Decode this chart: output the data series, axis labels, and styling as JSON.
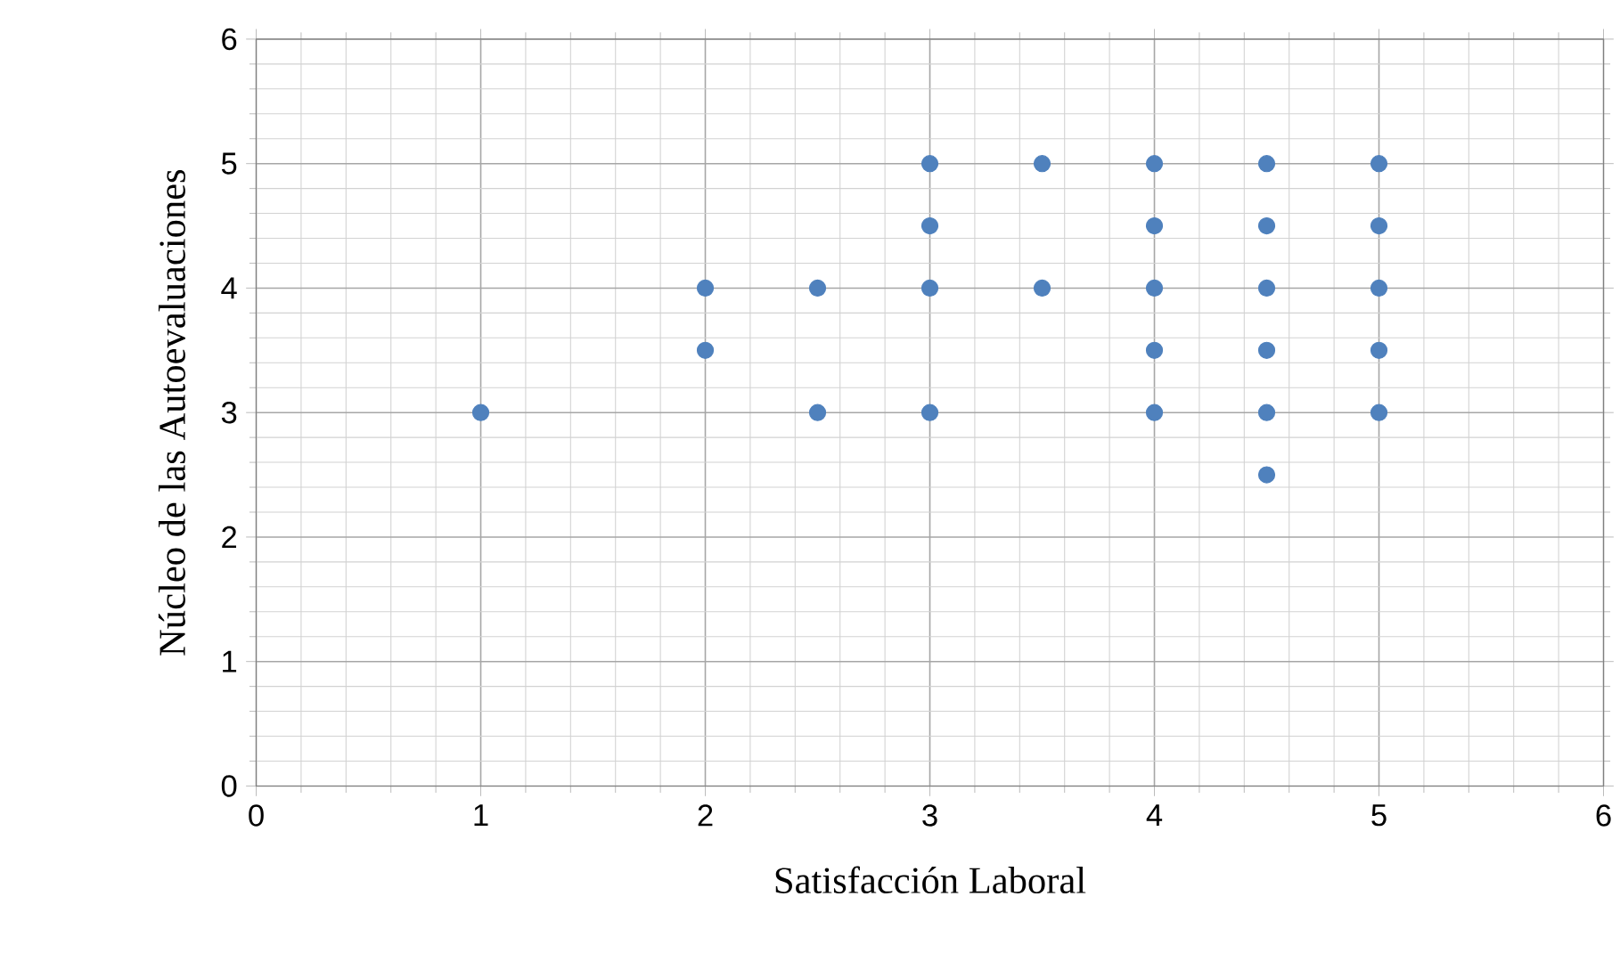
{
  "chart_data": {
    "type": "scatter",
    "xlabel": "Satisfacción Laboral",
    "ylabel": "Núcleo de las Autoevaluaciones",
    "x": [
      1,
      2,
      2,
      2.5,
      2.5,
      3,
      3,
      3,
      3,
      3.5,
      3.5,
      4,
      4,
      4,
      4,
      4,
      4.5,
      4.5,
      4.5,
      4.5,
      4.5,
      4.5,
      5,
      5,
      5,
      5,
      5
    ],
    "values": [
      3,
      4,
      3.5,
      4,
      3,
      5,
      4.5,
      4,
      3,
      5,
      4,
      5,
      4.5,
      4,
      3.5,
      3,
      5,
      4.5,
      4,
      3.5,
      3,
      2.5,
      5,
      4.5,
      4,
      3.5,
      3
    ],
    "color": "#4f81bd",
    "marker": "circle",
    "xlim": [
      0,
      6
    ],
    "ylim": [
      0,
      6
    ],
    "xticks": [
      0,
      1,
      2,
      3,
      4,
      5,
      6
    ],
    "yticks": [
      0,
      1,
      2,
      3,
      4,
      5,
      6
    ],
    "grid": true
  }
}
